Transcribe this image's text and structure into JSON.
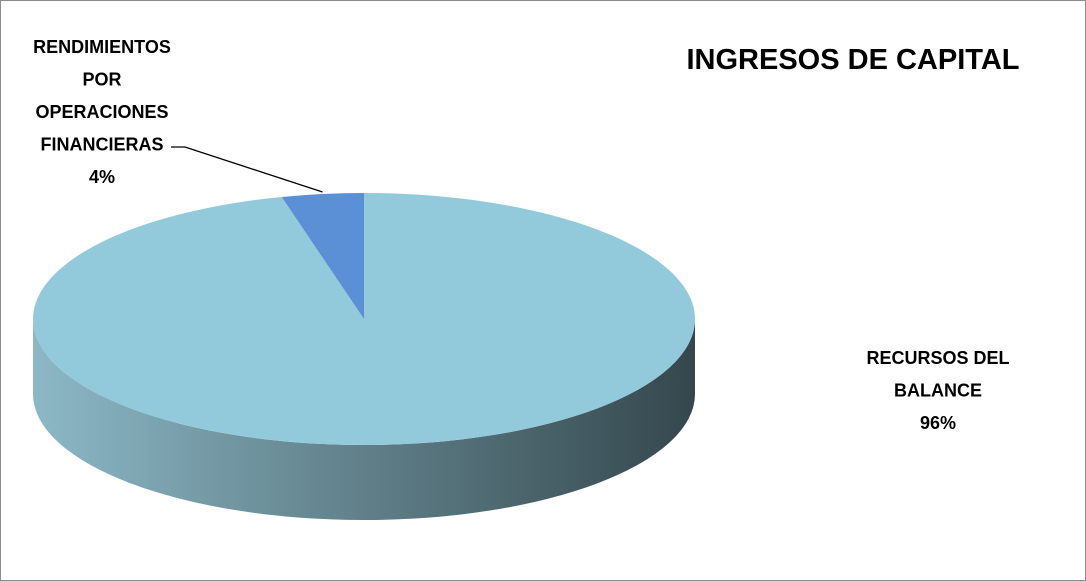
{
  "chart_data": {
    "type": "pie",
    "title": "INGRESOS DE CAPITAL",
    "style": "3d-pie",
    "slices": [
      {
        "label_lines": [
          "RENDIMIENTOS",
          "POR",
          "OPERACIONES",
          "FINANCIERAS"
        ],
        "percent_label": "4%",
        "value": 4,
        "color": "#5b8fd6"
      },
      {
        "label_lines": [
          "RECURSOS DEL",
          "BALANCE"
        ],
        "percent_label": "96%",
        "value": 96,
        "color": "#93cadb"
      }
    ],
    "legend": "none",
    "colors": {
      "side_light": "#8cb8c6",
      "side_dark": "#34474d",
      "small_side": "#3d6aa8",
      "leader_line": "#000000"
    }
  }
}
